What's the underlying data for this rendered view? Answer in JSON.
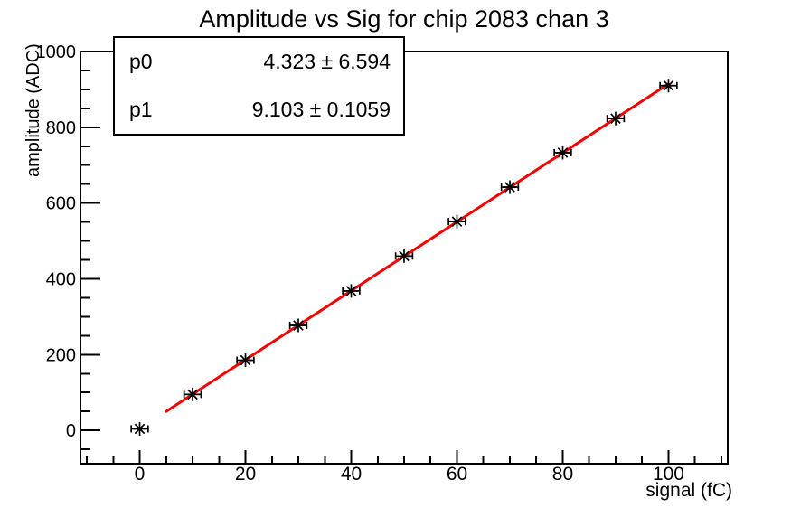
{
  "chart_data": {
    "type": "scatter",
    "title": "Amplitude vs Sig for chip 2083 chan 3",
    "xlabel": "signal (fC)",
    "ylabel": "amplitude (ADC)",
    "x": [
      0,
      10,
      20,
      30,
      40,
      50,
      60,
      70,
      80,
      90,
      100
    ],
    "y": [
      4,
      95,
      185,
      277,
      368,
      460,
      551,
      642,
      733,
      823,
      910
    ],
    "x_error": 1.6,
    "marker_style": "asterisk-8-spoke",
    "marker_color": "#000000",
    "axis_color": "#000000",
    "background_color": "#ffffff",
    "grid": false,
    "legend": "none",
    "xlim": [
      -11.2,
      111.2
    ],
    "ylim": [
      -88,
      1000
    ],
    "x_major_ticks": [
      0,
      20,
      40,
      60,
      80,
      100
    ],
    "x_minor_step": 5,
    "y_major_ticks": [
      0,
      200,
      400,
      600,
      800,
      1000
    ],
    "y_minor_step": 50,
    "fit": {
      "type": "linear",
      "p0": 4.323,
      "p1": 9.103,
      "x_start": 5,
      "x_end": 100,
      "color": "#f40000"
    }
  },
  "stats_box": {
    "rows": [
      {
        "name": "p0",
        "value": "4.323 ± 6.594"
      },
      {
        "name": "p1",
        "value": "9.103 ± 0.1059"
      }
    ]
  }
}
